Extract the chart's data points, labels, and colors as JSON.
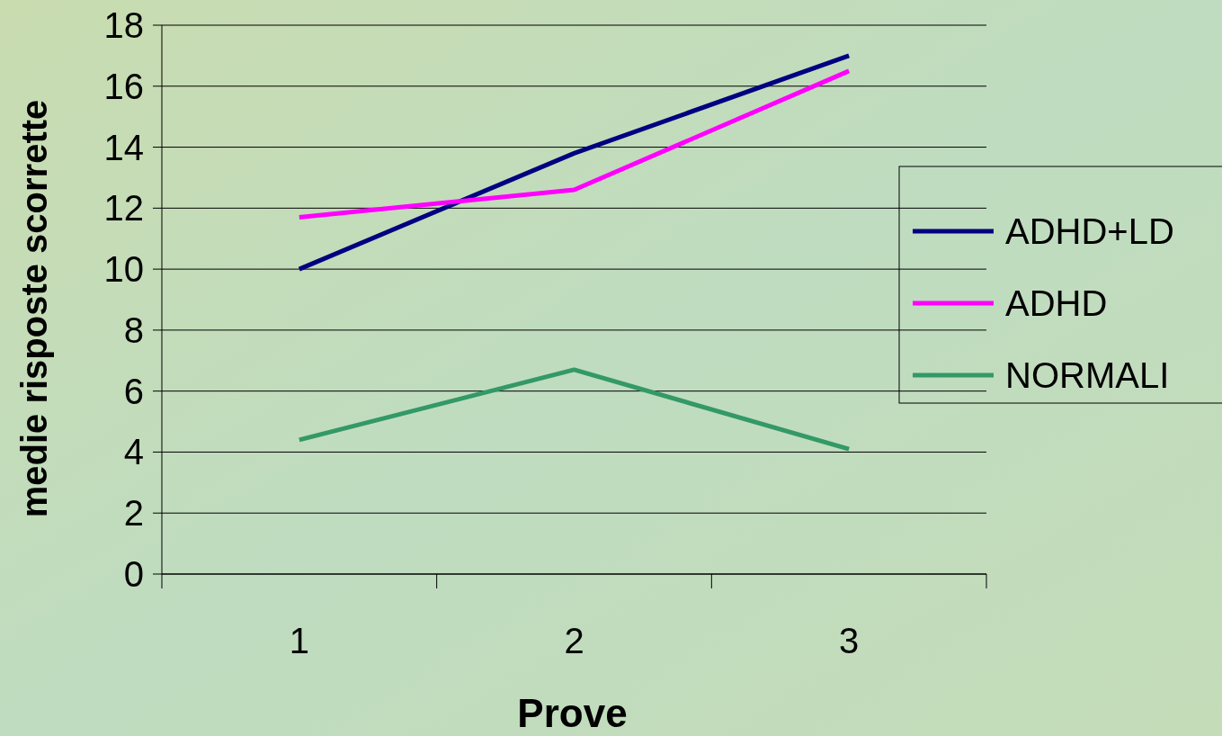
{
  "chart_data": {
    "type": "line",
    "xlabel": "Prove",
    "ylabel": "medie risposte scorrette",
    "categories": [
      "1",
      "2",
      "3"
    ],
    "series": [
      {
        "name": "ADHD+LD",
        "color": "#000080",
        "values": [
          10,
          13.8,
          17
        ]
      },
      {
        "name": "ADHD",
        "color": "#ff00ff",
        "values": [
          11.7,
          12.6,
          16.5
        ]
      },
      {
        "name": "NORMALI",
        "color": "#339966",
        "values": [
          4.4,
          6.7,
          4.1
        ]
      }
    ],
    "ylim": [
      0,
      18
    ],
    "yticks": [
      0,
      2,
      4,
      6,
      8,
      10,
      12,
      14,
      16,
      18
    ],
    "grid": "y",
    "legend": "right",
    "marker": "none",
    "line_style": "solid"
  }
}
